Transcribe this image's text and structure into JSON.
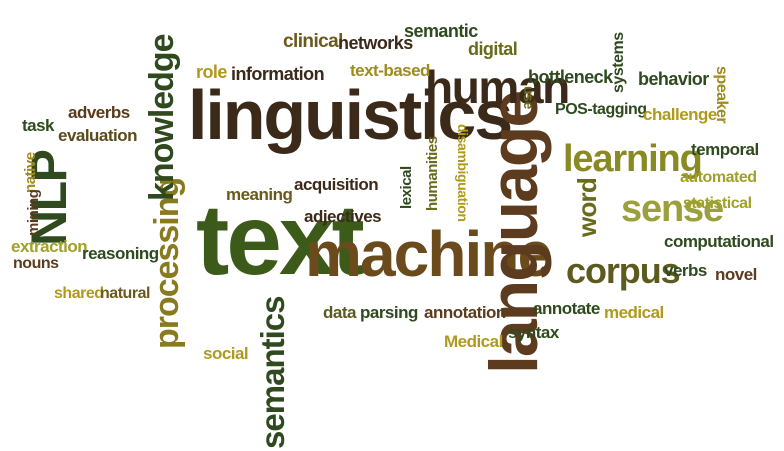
{
  "colors": {
    "dark_brown": "#3b2a1a",
    "dark_green": "#2f4a1e",
    "olive": "#6a6a1c",
    "gold": "#b09a1e",
    "yellow_green": "#8f9a2a",
    "brown": "#5c3b1e"
  },
  "words": [
    {
      "text": "text",
      "color": "#3c5a1a"
    },
    {
      "text": "linguistics",
      "color": "#3b2a1a"
    },
    {
      "text": "machine",
      "color": "#6b4a1c"
    },
    {
      "text": "language",
      "color": "#5c3b1e"
    },
    {
      "text": "NLP",
      "color": "#2f4a1e"
    },
    {
      "text": "processing",
      "color": "#8a7a1e"
    },
    {
      "text": "knowledge",
      "color": "#2f4a1e"
    },
    {
      "text": "semantics",
      "color": "#2f4a1e"
    },
    {
      "text": "human",
      "color": "#3b2a1a"
    },
    {
      "text": "learning",
      "color": "#8a8a24"
    },
    {
      "text": "sense",
      "color": "#9aa03a"
    },
    {
      "text": "corpus",
      "color": "#5c5a1e"
    },
    {
      "text": "word",
      "color": "#6a6a1c"
    },
    {
      "text": "clinical",
      "color": "#6b5a1e"
    },
    {
      "text": "networks",
      "color": "#3b2a1a"
    },
    {
      "text": "semantic",
      "color": "#2f4a1e"
    },
    {
      "text": "digital",
      "color": "#6a6a1c"
    },
    {
      "text": "systems",
      "color": "#2f4a1e"
    },
    {
      "text": "role",
      "color": "#b09a1e"
    },
    {
      "text": "information",
      "color": "#3b2a1a"
    },
    {
      "text": "text-based",
      "color": "#a08a1e"
    },
    {
      "text": "bottleneck",
      "color": "#2f4a1e"
    },
    {
      "text": "behavior",
      "color": "#2f4a1e"
    },
    {
      "text": "speaker",
      "color": "#a08a1e"
    },
    {
      "text": "adverbs",
      "color": "#5a3a1a"
    },
    {
      "text": "task",
      "color": "#2f4a1e"
    },
    {
      "text": "evaluation",
      "color": "#5c4a1e"
    },
    {
      "text": "native",
      "color": "#a08a1e"
    },
    {
      "text": "use",
      "color": "#6a6a1c"
    },
    {
      "text": "POS-tagging",
      "color": "#2f4a1e"
    },
    {
      "text": "challenge",
      "color": "#b09a1e"
    },
    {
      "text": "temporal",
      "color": "#2f4a1e"
    },
    {
      "text": "automated",
      "color": "#a0a02a"
    },
    {
      "text": "statistical",
      "color": "#a0a02a"
    },
    {
      "text": "mining",
      "color": "#5c3b1e"
    },
    {
      "text": "meaning",
      "color": "#6a5a1e"
    },
    {
      "text": "acquisition",
      "color": "#3b2a1a"
    },
    {
      "text": "adjectives",
      "color": "#3b2a1a"
    },
    {
      "text": "lexical",
      "color": "#2f4a1e"
    },
    {
      "text": "humanities",
      "color": "#6a6a1c"
    },
    {
      "text": "disambiguation",
      "color": "#b09a1e"
    },
    {
      "text": "extraction",
      "color": "#a0a02a"
    },
    {
      "text": "nouns",
      "color": "#5c3b1e"
    },
    {
      "text": "reasoning",
      "color": "#2f4a1e"
    },
    {
      "text": "shared",
      "color": "#b09a1e"
    },
    {
      "text": "natural",
      "color": "#6a5a1e"
    },
    {
      "text": "computational",
      "color": "#2f4a1e"
    },
    {
      "text": "verbs",
      "color": "#2f4a1e"
    },
    {
      "text": "novel",
      "color": "#5c3b1e"
    },
    {
      "text": "data",
      "color": "#5c5a1e"
    },
    {
      "text": "parsing",
      "color": "#2f4a1e"
    },
    {
      "text": "annotation",
      "color": "#5c3b1e"
    },
    {
      "text": "annotate",
      "color": "#2f4a1e"
    },
    {
      "text": "medical",
      "color": "#b09a1e"
    },
    {
      "text": "Medical",
      "color": "#b09a1e"
    },
    {
      "text": "syntax",
      "color": "#2f4a1e"
    },
    {
      "text": "social",
      "color": "#b09a1e"
    }
  ]
}
